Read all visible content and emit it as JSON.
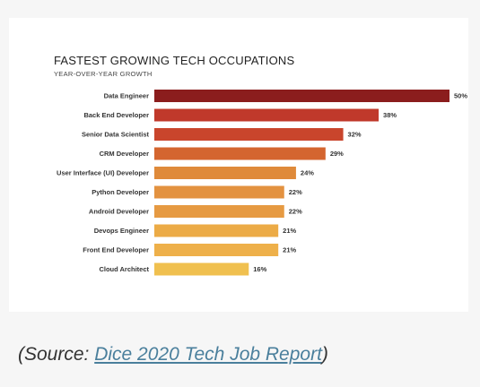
{
  "chart_data": {
    "type": "bar",
    "orientation": "horizontal",
    "title": "FASTEST GROWING TECH OCCUPATIONS",
    "subtitle": "YEAR-OVER-YEAR GROWTH",
    "categories": [
      "Data Engineer",
      "Back End Developer",
      "Senior Data Scientist",
      "CRM Developer",
      "User Interface (UI) Developer",
      "Python Developer",
      "Android Developer",
      "Devops Engineer",
      "Front End Developer",
      "Cloud Architect"
    ],
    "values": [
      50,
      38,
      32,
      29,
      24,
      22,
      22,
      21,
      21,
      16
    ],
    "value_labels": [
      "50%",
      "38%",
      "32%",
      "29%",
      "24%",
      "22%",
      "22%",
      "21%",
      "21%",
      "16%"
    ],
    "unit": "%",
    "colors": [
      "#8b1d1d",
      "#c0392b",
      "#c9452c",
      "#d4652f",
      "#df8a3a",
      "#e39240",
      "#e69a42",
      "#ecab46",
      "#eeb04a",
      "#f0c04f"
    ],
    "grid": false,
    "legend": "none"
  },
  "source": {
    "prefix": "(Source: ",
    "link_text": "Dice 2020 Tech Job Report",
    "suffix": ")"
  }
}
